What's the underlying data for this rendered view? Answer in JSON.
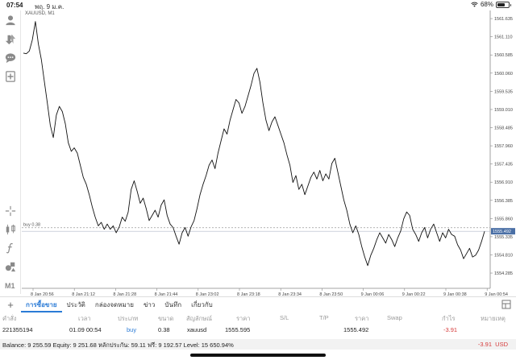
{
  "status_bar": {
    "time": "07:54",
    "date": "พฤ. 9 ม.ค.",
    "battery": "68%",
    "battery_level": 0.68
  },
  "toolbar": {
    "icons": [
      "person-icon",
      "trade-icon",
      "chat-icon",
      "add-indicator-icon",
      "crosshair-icon",
      "objects-icon",
      "function-icon",
      "shapes-icon"
    ],
    "timeframe": "M1"
  },
  "chart": {
    "symbol_label": "XAUUSD, M1",
    "position_label": "buy 0.38",
    "current_price_label": "1555.492",
    "colors": {
      "line": "#111111",
      "position_line": "#999999",
      "price_tag": "#4a6fa5"
    }
  },
  "chart_data": {
    "type": "line",
    "series": [
      {
        "values": [
          1560.64,
          1560.62,
          1560.7,
          1561.02,
          1561.55,
          1560.9,
          1560.45,
          1559.82,
          1559.2,
          1558.55,
          1558.2,
          1558.85,
          1559.1,
          1558.95,
          1558.6,
          1558.05,
          1557.8,
          1557.9,
          1557.75,
          1557.4,
          1557.05,
          1556.85,
          1556.55,
          1556.2,
          1555.9,
          1555.65,
          1555.75,
          1555.55,
          1555.7,
          1555.55,
          1555.65,
          1555.45,
          1555.62,
          1555.9,
          1555.78,
          1556.05,
          1556.7,
          1556.95,
          1556.65,
          1556.3,
          1556.45,
          1556.15,
          1555.8,
          1555.95,
          1556.1,
          1555.9,
          1556.25,
          1556.4,
          1555.95,
          1555.7,
          1555.6,
          1555.35,
          1555.12,
          1555.45,
          1555.6,
          1555.35,
          1555.62,
          1555.8,
          1556.15,
          1556.55,
          1556.85,
          1557.1,
          1557.4,
          1557.55,
          1557.3,
          1557.75,
          1558.1,
          1558.45,
          1558.3,
          1558.7,
          1559.0,
          1559.3,
          1559.2,
          1558.9,
          1559.1,
          1559.4,
          1559.7,
          1560.05,
          1560.2,
          1559.8,
          1559.2,
          1558.7,
          1558.4,
          1558.65,
          1558.8,
          1558.55,
          1558.3,
          1558.05,
          1557.7,
          1557.4,
          1556.9,
          1557.1,
          1556.7,
          1556.85,
          1556.55,
          1556.8,
          1557.05,
          1557.2,
          1557.0,
          1557.25,
          1556.95,
          1557.15,
          1557.0,
          1557.45,
          1557.6,
          1557.2,
          1556.8,
          1556.4,
          1556.1,
          1555.7,
          1555.45,
          1555.65,
          1555.4,
          1555.05,
          1554.75,
          1554.5,
          1554.8,
          1555.0,
          1555.25,
          1555.45,
          1555.3,
          1555.15,
          1555.4,
          1555.25,
          1555.05,
          1555.3,
          1555.5,
          1555.85,
          1556.05,
          1555.95,
          1555.55,
          1555.4,
          1555.2,
          1555.45,
          1555.6,
          1555.3,
          1555.55,
          1555.7,
          1555.45,
          1555.2,
          1555.45,
          1555.3,
          1555.55,
          1555.4,
          1555.35,
          1555.1,
          1554.95,
          1554.7,
          1554.85,
          1555.0,
          1554.75,
          1554.8,
          1554.95,
          1555.2,
          1555.49
        ]
      }
    ],
    "xticks": [
      "8 Jan 20:56",
      "8 Jan 21:12",
      "8 Jan 21:28",
      "8 Jan 21:44",
      "8 Jan 23:02",
      "8 Jan 23:18",
      "8 Jan 23:34",
      "8 Jan 23:50",
      "9 Jan 00:06",
      "9 Jan 00:22",
      "9 Jan 00:38",
      "9 Jan 00:54"
    ],
    "yticks": [
      1561.635,
      1561.11,
      1560.585,
      1560.06,
      1559.535,
      1559.01,
      1558.485,
      1557.96,
      1557.435,
      1556.91,
      1556.385,
      1555.86,
      1555.335,
      1554.81,
      1554.285
    ],
    "ylim": [
      1554.1,
      1561.8
    ],
    "position_price": 1555.595,
    "current_price": 1555.492,
    "grid": false
  },
  "tabs": {
    "items": [
      "การซื้อขาย",
      "ประวัติ",
      "กล่องจดหมาย",
      "ข่าว",
      "บันทึก",
      "เกี่ยวกับ"
    ],
    "active": 0
  },
  "table": {
    "headers": [
      "คำสั่ง",
      "เวลา",
      "ประเภท",
      "ขนาด",
      "สัญลักษณ์",
      "ราคา",
      "S/L",
      "T/P",
      "ราคา",
      "Swap",
      "กำไร",
      "หมายเหตุ"
    ],
    "row": {
      "order": "221355194",
      "time": "01.09 00:54",
      "type": "buy",
      "size": "0.38",
      "symbol": "xauusd",
      "open_price": "1555.595",
      "sl": "",
      "tp": "",
      "price": "1555.492",
      "swap": "",
      "profit": "-3.91",
      "note": ""
    }
  },
  "balance": {
    "text": "Balance: 9 255.59 Equity: 9 251.68 หลักประกัน: 59.11 ฟรี: 9 192.57 Level: 15 650.94%",
    "profit": "-3.91",
    "currency": "USD",
    "colors": {
      "profit": "#d63b3b"
    }
  }
}
